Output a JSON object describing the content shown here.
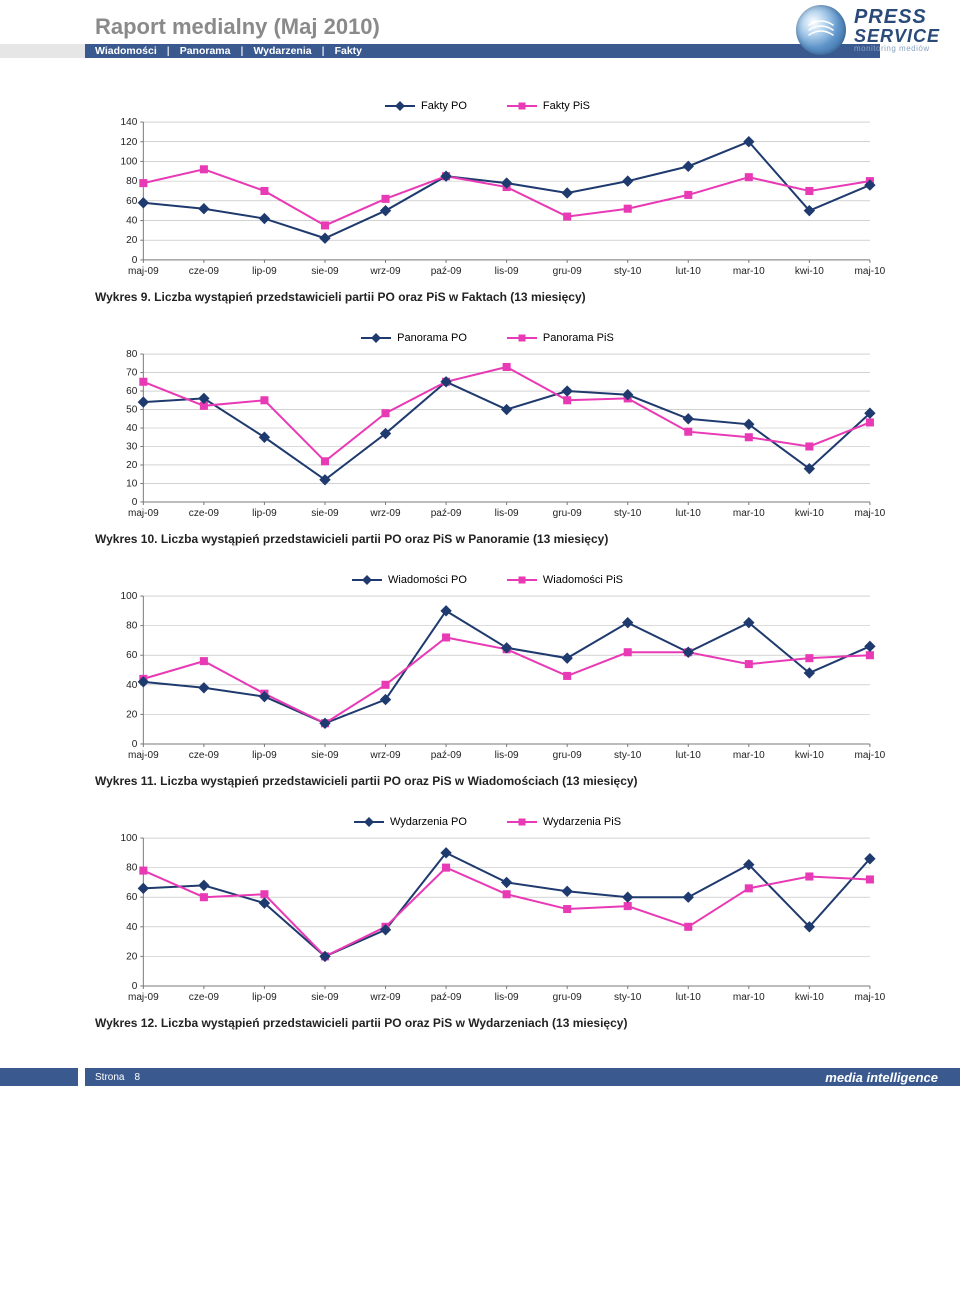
{
  "report": {
    "title": "Raport medialny (Maj 2010)",
    "breadcrumb": [
      "Wiadomości",
      "Panorama",
      "Wydarzenia",
      "Fakty"
    ],
    "logo": {
      "line1": "PRESS",
      "line2": "SERVICE",
      "tagline": "monitoring mediów"
    }
  },
  "xLabels": [
    "maj-09",
    "cze-09",
    "lip-09",
    "sie-09",
    "wrz-09",
    "paź-09",
    "lis-09",
    "gru-09",
    "sty-10",
    "lut-10",
    "mar-10",
    "kwi-10",
    "maj-10"
  ],
  "colors": {
    "po": "#1f3a6e",
    "pis": "#e83ab5",
    "grid": "#b8b8b8",
    "axis": "#7a7a7a",
    "tick_text": "#222222"
  },
  "charts": [
    {
      "id": "fakty",
      "legend_po": "Fakty PO",
      "legend_pis": "Fakty PiS",
      "ymax": 140,
      "ystep": 20,
      "po": [
        58,
        52,
        42,
        22,
        50,
        85,
        78,
        68,
        80,
        95,
        120,
        50,
        76
      ],
      "pis": [
        78,
        92,
        70,
        35,
        62,
        85,
        74,
        44,
        52,
        66,
        84,
        70,
        80
      ],
      "caption": "Wykres 9. Liczba wystąpień przedstawicieli partii PO oraz PiS w Faktach (13 miesięcy)"
    },
    {
      "id": "panorama",
      "legend_po": "Panorama PO",
      "legend_pis": "Panorama PiS",
      "ymax": 80,
      "ystep": 10,
      "po": [
        54,
        56,
        35,
        12,
        37,
        65,
        50,
        60,
        58,
        45,
        42,
        18,
        48
      ],
      "pis": [
        65,
        52,
        55,
        22,
        48,
        65,
        73,
        55,
        56,
        38,
        35,
        30,
        43
      ],
      "caption": "Wykres 10. Liczba wystąpień przedstawicieli partii PO oraz PiS w Panoramie (13 miesięcy)"
    },
    {
      "id": "wiadomosci",
      "legend_po": "Wiadomości PO",
      "legend_pis": "Wiadomości PiS",
      "ymax": 100,
      "ystep": 20,
      "po": [
        42,
        38,
        32,
        14,
        30,
        90,
        65,
        58,
        82,
        62,
        82,
        48,
        66
      ],
      "pis": [
        44,
        56,
        34,
        14,
        40,
        72,
        64,
        46,
        62,
        62,
        54,
        58,
        60
      ],
      "caption": "Wykres 11. Liczba wystąpień przedstawicieli partii PO oraz PiS w Wiadomościach (13 miesięcy)"
    },
    {
      "id": "wydarzenia",
      "legend_po": "Wydarzenia PO",
      "legend_pis": "Wydarzenia PiS",
      "ymax": 100,
      "ystep": 20,
      "po": [
        66,
        68,
        56,
        20,
        38,
        90,
        70,
        64,
        60,
        60,
        82,
        40,
        86
      ],
      "pis": [
        78,
        60,
        62,
        20,
        40,
        80,
        62,
        52,
        54,
        40,
        66,
        74,
        72
      ],
      "caption": "Wykres 12. Liczba wystąpień przedstawicieli partii PO oraz PiS w Wydarzeniach (13 miesięcy)"
    }
  ],
  "footer": {
    "page_label": "Strona",
    "page_number": "8",
    "brand": "media intelligence"
  }
}
